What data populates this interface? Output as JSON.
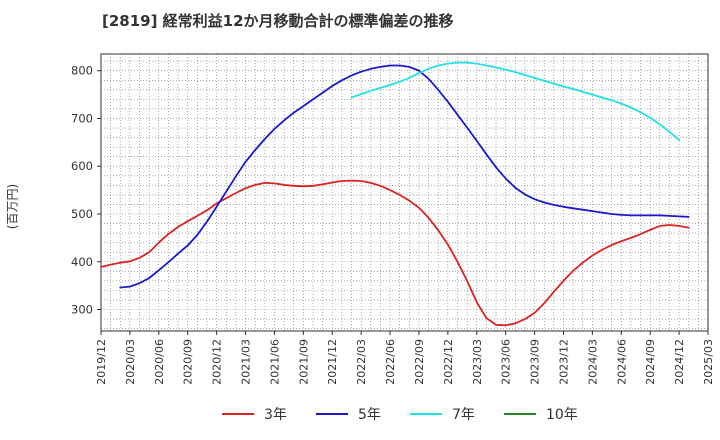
{
  "chart_data": {
    "type": "line",
    "title": "[2819]  経常利益12か月移動合計の標準偏差の推移",
    "xlabel": "",
    "ylabel": "(百万円)",
    "xlim": [
      "2019-12",
      "2025-03"
    ],
    "ylim": [
      255,
      835
    ],
    "yticks": [
      300,
      400,
      500,
      600,
      700,
      800
    ],
    "xticks": [
      "2019/12",
      "2020/03",
      "2020/06",
      "2020/09",
      "2020/12",
      "2021/03",
      "2021/06",
      "2021/09",
      "2021/12",
      "2022/03",
      "2022/06",
      "2022/09",
      "2022/12",
      "2023/03",
      "2023/06",
      "2023/09",
      "2023/12",
      "2024/03",
      "2024/06",
      "2024/09",
      "2024/12",
      "2025/03"
    ],
    "grid": true,
    "legend_position": "bottom",
    "series": [
      {
        "name": "3年",
        "color": "#dd2222",
        "points": [
          [
            "2019-12",
            389
          ],
          [
            "2020-01",
            394
          ],
          [
            "2020-02",
            398
          ],
          [
            "2020-03",
            401
          ],
          [
            "2020-04",
            408
          ],
          [
            "2020-05",
            420
          ],
          [
            "2020-06",
            440
          ],
          [
            "2020-07",
            458
          ],
          [
            "2020-08",
            473
          ],
          [
            "2020-09",
            485
          ],
          [
            "2020-10",
            496
          ],
          [
            "2020-11",
            508
          ],
          [
            "2020-12",
            522
          ],
          [
            "2021-01",
            533
          ],
          [
            "2021-02",
            544
          ],
          [
            "2021-03",
            554
          ],
          [
            "2021-04",
            561
          ],
          [
            "2021-05",
            565
          ],
          [
            "2021-06",
            564
          ],
          [
            "2021-07",
            561
          ],
          [
            "2021-08",
            559
          ],
          [
            "2021-09",
            558
          ],
          [
            "2021-10",
            559
          ],
          [
            "2021-11",
            562
          ],
          [
            "2021-12",
            566
          ],
          [
            "2022-01",
            569
          ],
          [
            "2022-02",
            570
          ],
          [
            "2022-03",
            569
          ],
          [
            "2022-04",
            565
          ],
          [
            "2022-05",
            559
          ],
          [
            "2022-06",
            550
          ],
          [
            "2022-07",
            540
          ],
          [
            "2022-08",
            528
          ],
          [
            "2022-09",
            513
          ],
          [
            "2022-10",
            492
          ],
          [
            "2022-11",
            466
          ],
          [
            "2022-12",
            436
          ],
          [
            "2023-01",
            400
          ],
          [
            "2023-02",
            360
          ],
          [
            "2023-03",
            315
          ],
          [
            "2023-04",
            282
          ],
          [
            "2023-05",
            268
          ],
          [
            "2023-06",
            267
          ],
          [
            "2023-07",
            271
          ],
          [
            "2023-08",
            280
          ],
          [
            "2023-09",
            293
          ],
          [
            "2023-10",
            313
          ],
          [
            "2023-11",
            337
          ],
          [
            "2023-12",
            360
          ],
          [
            "2024-01",
            381
          ],
          [
            "2024-02",
            398
          ],
          [
            "2024-03",
            413
          ],
          [
            "2024-04",
            425
          ],
          [
            "2024-05",
            435
          ],
          [
            "2024-06",
            443
          ],
          [
            "2024-07",
            450
          ],
          [
            "2024-08",
            458
          ],
          [
            "2024-09",
            467
          ],
          [
            "2024-10",
            475
          ],
          [
            "2024-11",
            477
          ],
          [
            "2024-12",
            475
          ],
          [
            "2025-01",
            471
          ]
        ]
      },
      {
        "name": "5年",
        "color": "#1a1acc",
        "points": [
          [
            "2020-02",
            346
          ],
          [
            "2020-03",
            348
          ],
          [
            "2020-04",
            355
          ],
          [
            "2020-05",
            366
          ],
          [
            "2020-06",
            382
          ],
          [
            "2020-07",
            399
          ],
          [
            "2020-08",
            417
          ],
          [
            "2020-09",
            434
          ],
          [
            "2020-10",
            456
          ],
          [
            "2020-11",
            484
          ],
          [
            "2020-12",
            515
          ],
          [
            "2021-01",
            547
          ],
          [
            "2021-02",
            579
          ],
          [
            "2021-03",
            609
          ],
          [
            "2021-04",
            634
          ],
          [
            "2021-05",
            657
          ],
          [
            "2021-06",
            678
          ],
          [
            "2021-07",
            696
          ],
          [
            "2021-08",
            712
          ],
          [
            "2021-09",
            726
          ],
          [
            "2021-10",
            740
          ],
          [
            "2021-11",
            754
          ],
          [
            "2021-12",
            768
          ],
          [
            "2022-01",
            780
          ],
          [
            "2022-02",
            790
          ],
          [
            "2022-03",
            798
          ],
          [
            "2022-04",
            804
          ],
          [
            "2022-05",
            808
          ],
          [
            "2022-06",
            811
          ],
          [
            "2022-07",
            811
          ],
          [
            "2022-08",
            808
          ],
          [
            "2022-09",
            800
          ],
          [
            "2022-10",
            783
          ],
          [
            "2022-11",
            760
          ],
          [
            "2022-12",
            735
          ],
          [
            "2023-01",
            708
          ],
          [
            "2023-02",
            681
          ],
          [
            "2023-03",
            653
          ],
          [
            "2023-04",
            625
          ],
          [
            "2023-05",
            598
          ],
          [
            "2023-06",
            574
          ],
          [
            "2023-07",
            555
          ],
          [
            "2023-08",
            541
          ],
          [
            "2023-09",
            531
          ],
          [
            "2023-10",
            524
          ],
          [
            "2023-11",
            519
          ],
          [
            "2023-12",
            515
          ],
          [
            "2024-01",
            512
          ],
          [
            "2024-02",
            509
          ],
          [
            "2024-03",
            506
          ],
          [
            "2024-04",
            503
          ],
          [
            "2024-05",
            500
          ],
          [
            "2024-06",
            498
          ],
          [
            "2024-07",
            497
          ],
          [
            "2024-08",
            497
          ],
          [
            "2024-09",
            497
          ],
          [
            "2024-10",
            497
          ],
          [
            "2024-11",
            496
          ],
          [
            "2024-12",
            495
          ],
          [
            "2025-01",
            494
          ]
        ]
      },
      {
        "name": "7年",
        "color": "#22e0e8",
        "points": [
          [
            "2022-02",
            744
          ],
          [
            "2022-03",
            751
          ],
          [
            "2022-04",
            758
          ],
          [
            "2022-05",
            764
          ],
          [
            "2022-06",
            770
          ],
          [
            "2022-07",
            777
          ],
          [
            "2022-08",
            785
          ],
          [
            "2022-09",
            795
          ],
          [
            "2022-10",
            804
          ],
          [
            "2022-11",
            811
          ],
          [
            "2022-12",
            815
          ],
          [
            "2023-01",
            817
          ],
          [
            "2023-02",
            817
          ],
          [
            "2023-03",
            815
          ],
          [
            "2023-04",
            811
          ],
          [
            "2023-05",
            807
          ],
          [
            "2023-06",
            802
          ],
          [
            "2023-07",
            797
          ],
          [
            "2023-08",
            791
          ],
          [
            "2023-09",
            785
          ],
          [
            "2023-10",
            779
          ],
          [
            "2023-11",
            773
          ],
          [
            "2023-12",
            767
          ],
          [
            "2024-01",
            762
          ],
          [
            "2024-02",
            756
          ],
          [
            "2024-03",
            750
          ],
          [
            "2024-04",
            744
          ],
          [
            "2024-05",
            738
          ],
          [
            "2024-06",
            731
          ],
          [
            "2024-07",
            723
          ],
          [
            "2024-08",
            713
          ],
          [
            "2024-09",
            701
          ],
          [
            "2024-10",
            688
          ],
          [
            "2024-11",
            672
          ],
          [
            "2024-12",
            655
          ]
        ]
      },
      {
        "name": "10年",
        "color": "#228822",
        "points": []
      }
    ]
  }
}
